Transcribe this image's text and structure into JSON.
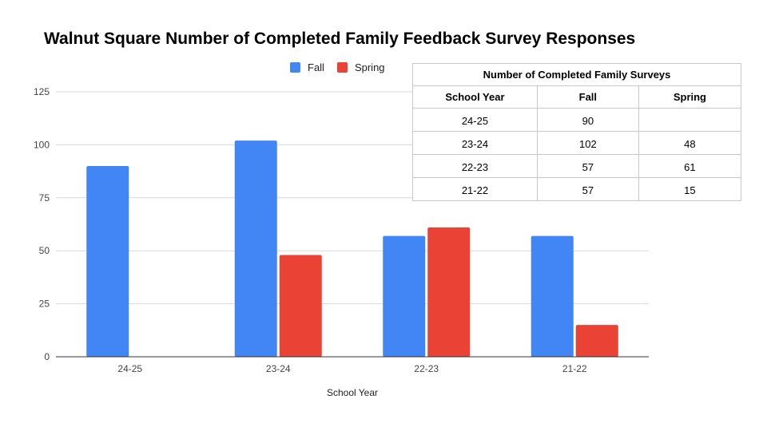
{
  "chart_data": {
    "type": "bar",
    "title": "Walnut Square Number of Completed Family Feedback Survey Responses",
    "xlabel": "School Year",
    "ylabel": "",
    "categories": [
      "24-25",
      "23-24",
      "22-23",
      "21-22"
    ],
    "series": [
      {
        "name": "Fall",
        "color": "#4285F4",
        "values": [
          90,
          102,
          57,
          57
        ]
      },
      {
        "name": "Spring",
        "color": "#EA4335",
        "values": [
          null,
          48,
          61,
          15
        ]
      }
    ],
    "ylim": [
      0,
      125
    ],
    "yticks": [
      "0",
      "25",
      "50",
      "75",
      "100",
      "125"
    ],
    "grid": true,
    "legend_position": "top"
  },
  "table": {
    "caption": "Number of Completed Family Surveys",
    "headers": [
      "School Year",
      "Fall",
      "Spring"
    ],
    "rows": [
      [
        "24-25",
        "90",
        ""
      ],
      [
        "23-24",
        "102",
        "48"
      ],
      [
        "22-23",
        "57",
        "61"
      ],
      [
        "21-22",
        "57",
        "15"
      ]
    ]
  }
}
